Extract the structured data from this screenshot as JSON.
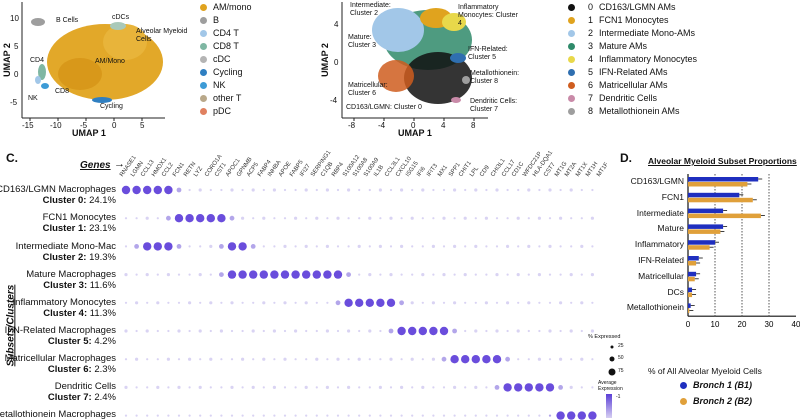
{
  "panel_a": {
    "axis_x": "UMAP 1",
    "axis_y": "UMAP 2",
    "x_ticks": [
      "-15",
      "-10",
      "-5",
      "0",
      "5"
    ],
    "y_ticks": [
      "10",
      "5",
      "0",
      "-5"
    ],
    "annotations": [
      "B Cells",
      "cDCs",
      "Alveolar Myeloid Cells",
      "AM/Mono",
      "CD4",
      "NK",
      "CD8",
      "Cycling"
    ],
    "legend": [
      {
        "label": "AM/mono",
        "color": "#e0a31e"
      },
      {
        "label": "B",
        "color": "#9e9e9e"
      },
      {
        "label": "CD4 T",
        "color": "#a2c7e8"
      },
      {
        "label": "CD8 T",
        "color": "#7fb7a3"
      },
      {
        "label": "cDC",
        "color": "#b4b4b4"
      },
      {
        "label": "Cycling",
        "color": "#2f7fc1"
      },
      {
        "label": "NK",
        "color": "#3d9bd6"
      },
      {
        "label": "other T",
        "color": "#b9a88a"
      },
      {
        "label": "pDC",
        "color": "#e08160"
      }
    ]
  },
  "panel_b": {
    "axis_x": "UMAP 1",
    "axis_y": "UMAP 2",
    "x_ticks": [
      "-8",
      "-4",
      "0",
      "4",
      "8"
    ],
    "y_ticks": [
      "4",
      "0",
      "-4"
    ],
    "annotations": [
      "Intermediate: Cluster 2",
      "Inflammatory Monocytes: Cluster 4",
      "Mature: Cluster 3",
      "IFN-Related: Cluster 5",
      "Metallothionein: Cluster 8",
      "Matricellular: Cluster 6",
      "Dendritic Cells: Cluster 7",
      "CD163/LGMN: Cluster 0",
      "FCN1: Cluster 1"
    ],
    "legend": [
      {
        "num": "0",
        "label": "CD163/LGMN AMs",
        "color": "#111111"
      },
      {
        "num": "1",
        "label": "FCN1 Monocytes",
        "color": "#e0a31e"
      },
      {
        "num": "2",
        "label": "Intermediate Mono-AMs",
        "color": "#a2c7e8"
      },
      {
        "num": "3",
        "label": "Mature AMs",
        "color": "#2f8a6a"
      },
      {
        "num": "4",
        "label": "Inflammatory Monocytes",
        "color": "#e8d84a"
      },
      {
        "num": "5",
        "label": "IFN-Related AMs",
        "color": "#2f6fb0"
      },
      {
        "num": "6",
        "label": "Matricellular AMs",
        "color": "#cf5d1f"
      },
      {
        "num": "7",
        "label": "Dendritic Cells",
        "color": "#c98aa8"
      },
      {
        "num": "8",
        "label": "Metallothionein AMs",
        "color": "#9e9e9e"
      }
    ]
  },
  "panel_c": {
    "letter": "C.",
    "genes_title": "Genes",
    "side_title": "Subsets/Clusters",
    "size_legend_title": "% Expressed",
    "size_legend": [
      "25",
      "50",
      "75"
    ],
    "color_legend_title": "Average Expression",
    "color_legend_ticks": [
      "1",
      "0",
      "-1"
    ],
    "genes": [
      "RNASE1",
      "LGMN",
      "CCL13",
      "HMOX1",
      "CCL2",
      "FCN1",
      "RETN",
      "LYZ",
      "CORO1A",
      "CST1",
      "APOC1",
      "GPNMB",
      "ACP5",
      "FABP4",
      "INHBA",
      "APOE",
      "FABP5",
      "IFI27",
      "SERPING1",
      "C1QB",
      "RBP4",
      "S100A12",
      "S100A8",
      "S100A9",
      "IL1B",
      "CCL3L1",
      "CXCL10",
      "ISG15",
      "IFI6",
      "IFIT3",
      "MX1",
      "SPP1",
      "CHIT1",
      "LPL",
      "CD9",
      "CHI3L1",
      "CCL17",
      "CD1C",
      "WFDC21P",
      "HLA-DQA1",
      "CST7",
      "MT1G",
      "MT2A",
      "MT1X",
      "MT1H",
      "MT1F"
    ],
    "rows": [
      {
        "name": "CD163/LGMN Macrophages",
        "cluster": "Cluster 0:",
        "pct": "24.1%"
      },
      {
        "name": "FCN1 Monocytes",
        "cluster": "Cluster 1:",
        "pct": "23.1%"
      },
      {
        "name": "Intermediate Mono-Mac",
        "cluster": "Cluster 2:",
        "pct": "19.3%"
      },
      {
        "name": "Mature Macrophages",
        "cluster": "Cluster 3:",
        "pct": "11.6%"
      },
      {
        "name": "Inflammatory Monocytes",
        "cluster": "Cluster 4:",
        "pct": "11.3%"
      },
      {
        "name": "IFN-Related Macrophages",
        "cluster": "Cluster 5:",
        "pct": "4.2%"
      },
      {
        "name": "Matricellular Macrophages",
        "cluster": "Cluster 6:",
        "pct": "2.3%"
      },
      {
        "name": "Dendritic Cells",
        "cluster": "Cluster 7:",
        "pct": "2.4%"
      },
      {
        "name": "Metallothionein Macrophages",
        "cluster": "",
        "pct": ""
      }
    ]
  },
  "chart_data": {
    "type": "bar",
    "title": "Alveolar Myeloid Subset Proportions",
    "letter": "D.",
    "categories": [
      "CD163/LGMN",
      "FCN1",
      "Intermediate",
      "Mature",
      "Inflammatory",
      "IFN-Related",
      "Matricellular",
      "DCs",
      "Metallothionein"
    ],
    "series": [
      {
        "name": "Bronch 1 (B1)",
        "color": "#1f2fbf",
        "values": [
          26,
          19,
          13,
          13,
          10,
          4,
          3,
          1.5,
          1
        ]
      },
      {
        "name": "Bronch 2 (B2)",
        "color": "#e0a03a",
        "values": [
          22,
          24,
          27,
          12,
          8,
          3,
          2.5,
          1.5,
          0.5
        ]
      }
    ],
    "xlabel": "% of All Alveolar Myeloid Cells",
    "xlim": [
      0,
      40
    ],
    "x_ticks": [
      "0",
      "10",
      "20",
      "30",
      "40"
    ],
    "legend_position": "bottom"
  }
}
